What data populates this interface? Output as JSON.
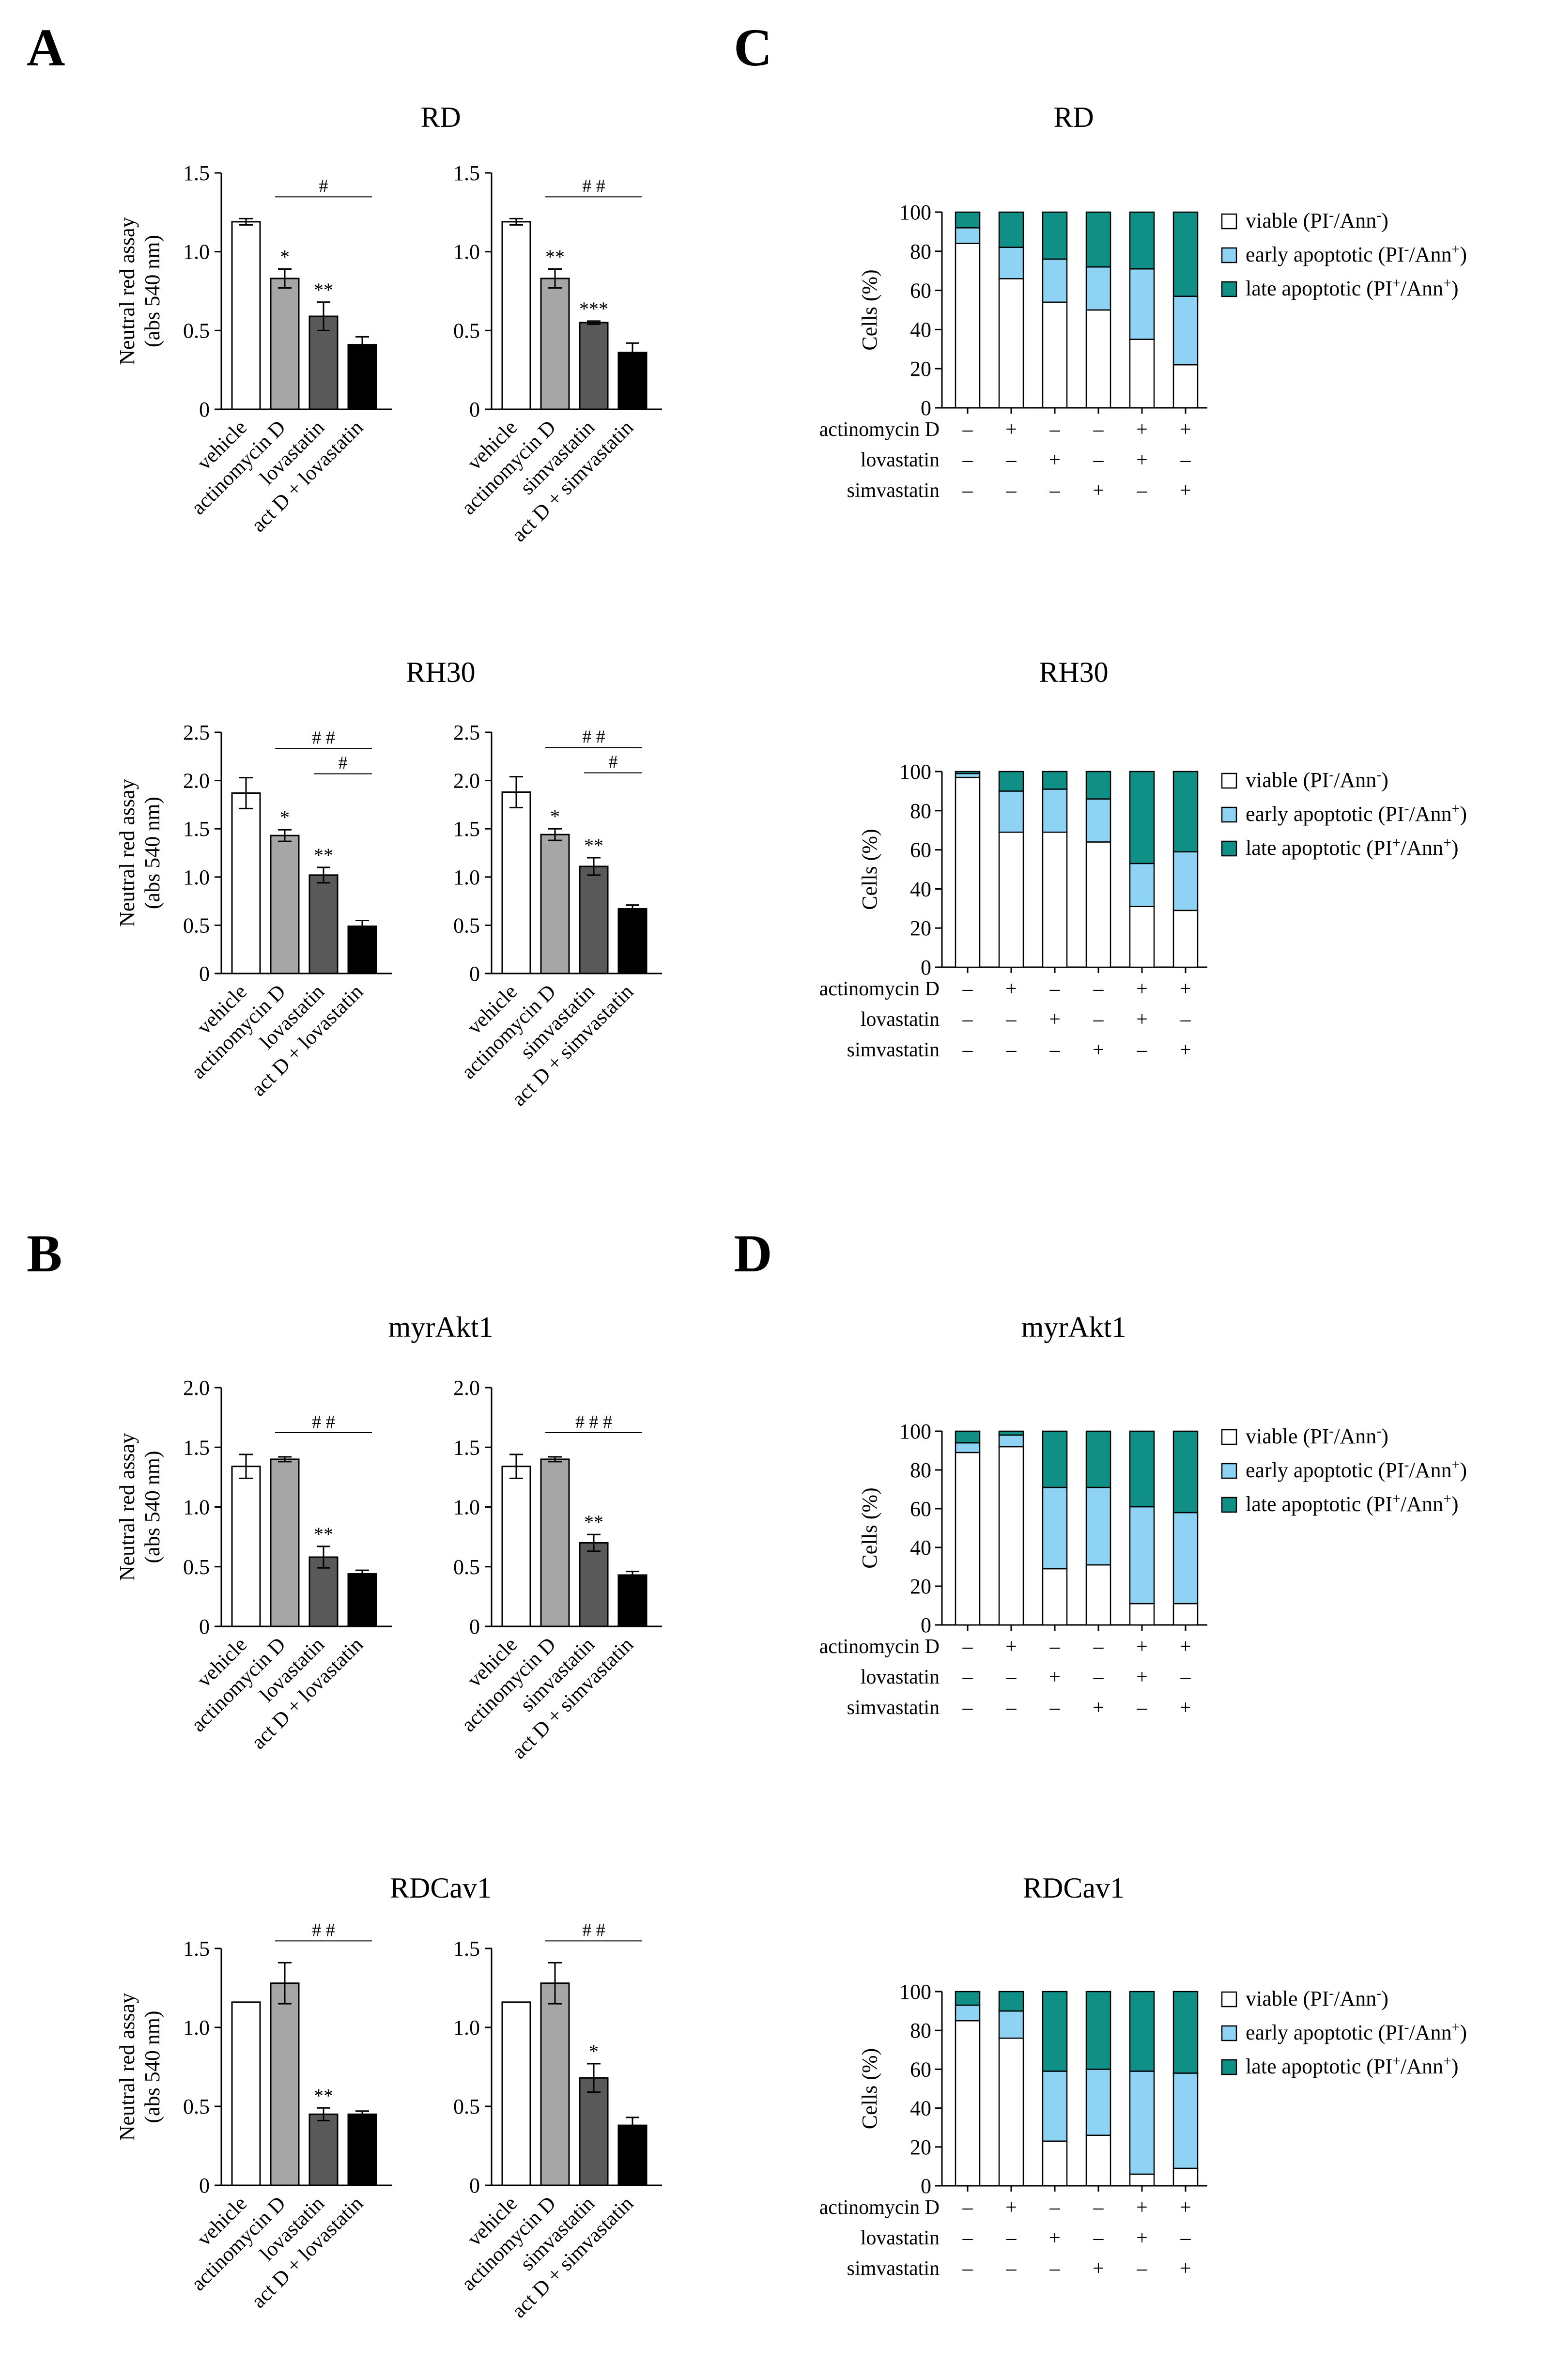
{
  "panel_labels": [
    "A",
    "B",
    "C",
    "D"
  ],
  "colors": {
    "vehicle": "#ffffff",
    "actinomycin": "#a6a6a6",
    "statin": "#595959",
    "combo": "#000000",
    "viable": "#ffffff",
    "early": "#8fd3f4",
    "late": "#108f87"
  },
  "chart_data": [
    {
      "id": "A-RD",
      "type": "bar",
      "title": "RD",
      "ylabel": "Neutral red assay (abs 540 nm)",
      "yticks": [
        "0",
        "0.5",
        "1.0",
        "1.5"
      ],
      "ylim": [
        0,
        1.5
      ],
      "subplots": [
        {
          "categories": [
            "vehicle",
            "actinomycin D",
            "lovastatin",
            "act D + lovastatin"
          ],
          "values": [
            1.19,
            0.83,
            0.59,
            0.41
          ],
          "errors": [
            0.02,
            0.06,
            0.09,
            0.05
          ],
          "stars": [
            "",
            "*",
            "**",
            ""
          ],
          "brackets": [
            {
              "from": 1,
              "to": 3,
              "label": "#"
            }
          ]
        },
        {
          "categories": [
            "vehicle",
            "actinomycin D",
            "simvastatin",
            "act D + simvastatin"
          ],
          "values": [
            1.19,
            0.83,
            0.55,
            0.36
          ],
          "errors": [
            0.02,
            0.06,
            0.01,
            0.06
          ],
          "stars": [
            "",
            "**",
            "***",
            ""
          ],
          "brackets": [
            {
              "from": 1,
              "to": 3,
              "label": "##"
            }
          ]
        }
      ]
    },
    {
      "id": "A-RH30",
      "type": "bar",
      "title": "RH30",
      "ylabel": "Neutral red assay (abs 540 nm)",
      "yticks": [
        "0",
        "0.5",
        "1.0",
        "1.5",
        "2.0",
        "2.5"
      ],
      "ylim": [
        0,
        2.5
      ],
      "subplots": [
        {
          "categories": [
            "vehicle",
            "actinomycin D",
            "lovastatin",
            "act D + lovastatin"
          ],
          "values": [
            1.87,
            1.43,
            1.02,
            0.49
          ],
          "errors": [
            0.16,
            0.06,
            0.08,
            0.06
          ],
          "stars": [
            "",
            "*",
            "**",
            ""
          ],
          "brackets": [
            {
              "from": 1,
              "to": 3,
              "label": "##"
            },
            {
              "from": 2,
              "to": 3,
              "label": "#"
            }
          ]
        },
        {
          "categories": [
            "vehicle",
            "actinomycin D",
            "simvastatin",
            "act D + simvastatin"
          ],
          "values": [
            1.88,
            1.44,
            1.11,
            0.67
          ],
          "errors": [
            0.16,
            0.06,
            0.09,
            0.04
          ],
          "stars": [
            "",
            "*",
            "**",
            ""
          ],
          "brackets": [
            {
              "from": 1,
              "to": 3,
              "label": "##"
            },
            {
              "from": 2,
              "to": 3,
              "label": "#"
            }
          ]
        }
      ]
    },
    {
      "id": "B-myrAkt1",
      "type": "bar",
      "title": "myrAkt1",
      "ylabel": "Neutral red assay (abs 540 nm)",
      "yticks": [
        "0",
        "0.5",
        "1.0",
        "1.5",
        "2.0"
      ],
      "ylim": [
        0,
        2.0
      ],
      "subplots": [
        {
          "categories": [
            "vehicle",
            "actinomycin D",
            "lovastatin",
            "act D + lovastatin"
          ],
          "values": [
            1.34,
            1.4,
            0.58,
            0.44
          ],
          "errors": [
            0.1,
            0.02,
            0.09,
            0.03
          ],
          "stars": [
            "",
            "",
            "**",
            ""
          ],
          "brackets": [
            {
              "from": 1,
              "to": 3,
              "label": "##"
            }
          ]
        },
        {
          "categories": [
            "vehicle",
            "actinomycin D",
            "simvastatin",
            "act D + simvastatin"
          ],
          "values": [
            1.34,
            1.4,
            0.7,
            0.43
          ],
          "errors": [
            0.1,
            0.02,
            0.07,
            0.03
          ],
          "stars": [
            "",
            "",
            "**",
            ""
          ],
          "brackets": [
            {
              "from": 1,
              "to": 3,
              "label": "###"
            }
          ]
        }
      ]
    },
    {
      "id": "B-RDCav1",
      "type": "bar",
      "title": "RDCav1",
      "ylabel": "Neutral red assay (abs 540 nm)",
      "yticks": [
        "0",
        "0.5",
        "1.0",
        "1.5"
      ],
      "ylim": [
        0,
        1.5
      ],
      "subplots": [
        {
          "categories": [
            "vehicle",
            "actinomycin D",
            "lovastatin",
            "act D + lovastatin"
          ],
          "values": [
            1.16,
            1.28,
            0.45,
            0.45
          ],
          "errors": [
            0.0,
            0.13,
            0.04,
            0.02
          ],
          "stars": [
            "",
            "",
            "**",
            ""
          ],
          "brackets": [
            {
              "from": 1,
              "to": 3,
              "label": "##"
            }
          ]
        },
        {
          "categories": [
            "vehicle",
            "actinomycin D",
            "simvastatin",
            "act D + simvastatin"
          ],
          "values": [
            1.16,
            1.28,
            0.68,
            0.38
          ],
          "errors": [
            0.0,
            0.13,
            0.09,
            0.05
          ],
          "stars": [
            "",
            "",
            "*",
            ""
          ],
          "brackets": [
            {
              "from": 1,
              "to": 3,
              "label": "##"
            }
          ]
        }
      ]
    },
    {
      "id": "C-RD",
      "type": "stacked-bar",
      "title": "RD",
      "ylabel": "Cells (%)",
      "yticks": [
        "0",
        "20",
        "40",
        "60",
        "80",
        "100"
      ],
      "ylim": [
        0,
        100
      ],
      "series_names": [
        "viable",
        "early apoptotic",
        "late apoptotic"
      ],
      "viable": [
        84,
        66,
        54,
        50,
        35,
        22
      ],
      "early": [
        8,
        16,
        22,
        22,
        36,
        35
      ],
      "late": [
        8,
        18,
        24,
        28,
        29,
        43
      ]
    },
    {
      "id": "C-RH30",
      "type": "stacked-bar",
      "title": "RH30",
      "ylabel": "Cells (%)",
      "yticks": [
        "0",
        "20",
        "40",
        "60",
        "80",
        "100"
      ],
      "ylim": [
        0,
        100
      ],
      "series_names": [
        "viable",
        "early apoptotic",
        "late apoptotic"
      ],
      "viable": [
        97,
        69,
        69,
        64,
        31,
        29
      ],
      "early": [
        2,
        21,
        22,
        22,
        22,
        30
      ],
      "late": [
        1,
        10,
        9,
        14,
        47,
        41
      ]
    },
    {
      "id": "D-myrAkt1",
      "type": "stacked-bar",
      "title": "myrAkt1",
      "ylabel": "Cells (%)",
      "yticks": [
        "0",
        "20",
        "40",
        "60",
        "80",
        "100"
      ],
      "ylim": [
        0,
        100
      ],
      "series_names": [
        "viable",
        "early apoptotic",
        "late apoptotic"
      ],
      "viable": [
        89,
        92,
        29,
        31,
        11,
        11
      ],
      "early": [
        5,
        6,
        42,
        40,
        50,
        47
      ],
      "late": [
        6,
        2,
        29,
        29,
        39,
        42
      ]
    },
    {
      "id": "D-RDCav1",
      "type": "stacked-bar",
      "title": "RDCav1",
      "ylabel": "Cells (%)",
      "yticks": [
        "0",
        "20",
        "40",
        "60",
        "80",
        "100"
      ],
      "ylim": [
        0,
        100
      ],
      "series_names": [
        "viable",
        "early apoptotic",
        "late apoptotic"
      ],
      "viable": [
        85,
        76,
        23,
        26,
        6,
        9
      ],
      "early": [
        8,
        14,
        36,
        34,
        53,
        49
      ],
      "late": [
        7,
        10,
        41,
        40,
        41,
        42
      ]
    }
  ],
  "legend": [
    {
      "before": "viable (PI",
      "sup1": "-",
      "mid": "/Ann",
      "sup2": "-",
      "after": ")"
    },
    {
      "before": "early apoptotic (PI",
      "sup1": "-",
      "mid": "/Ann",
      "sup2": "+",
      "after": ")"
    },
    {
      "before": "late apoptotic (PI",
      "sup1": "+",
      "mid": "/Ann",
      "sup2": "+",
      "after": ")"
    }
  ],
  "treatment_rows": [
    {
      "label": "actinomycin D",
      "signs": [
        "–",
        "+",
        "–",
        "–",
        "+",
        "+"
      ]
    },
    {
      "label": "lovastatin",
      "signs": [
        "–",
        "–",
        "+",
        "–",
        "+",
        "–"
      ]
    },
    {
      "label": "simvastatin",
      "signs": [
        "–",
        "–",
        "–",
        "+",
        "–",
        "+"
      ]
    }
  ]
}
